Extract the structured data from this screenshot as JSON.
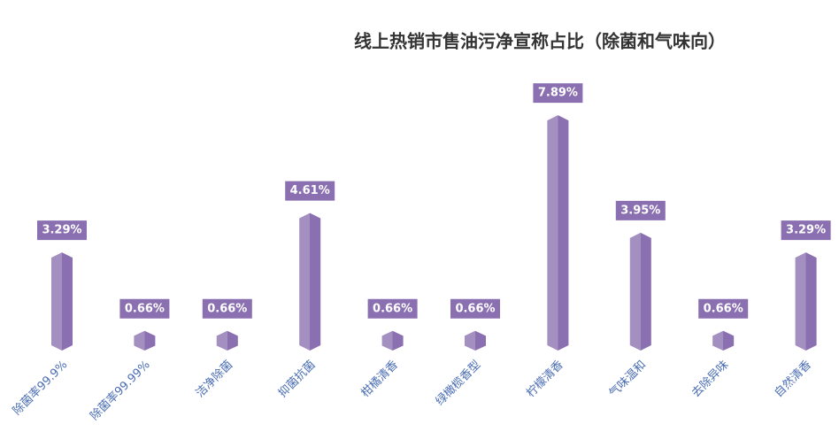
{
  "chart_data": {
    "type": "bar",
    "title": "线上热销市售油污净宣称占比（除菌和气味向）",
    "categories": [
      "除菌率99.9%",
      "除菌率99.99%",
      "洁净除菌",
      "抑菌抗菌",
      "柑橘清香",
      "绿橄榄香型",
      "柠檬清香",
      "气味温和",
      "去除异味",
      "自然清香"
    ],
    "values": [
      3.29,
      0.66,
      0.66,
      4.61,
      0.66,
      0.66,
      7.89,
      3.95,
      0.66,
      3.29
    ],
    "value_labels": [
      "3.29%",
      "0.66%",
      "0.66%",
      "4.61%",
      "0.66%",
      "0.66%",
      "7.89%",
      "3.95%",
      "0.66%",
      "3.29%"
    ],
    "color": "#8a70b0"
  }
}
